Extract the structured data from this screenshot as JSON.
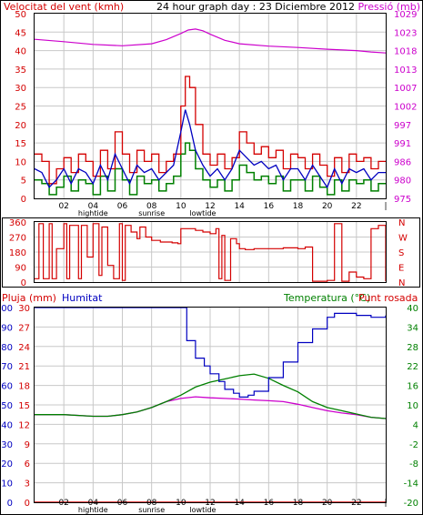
{
  "colors": {
    "wind": "#d40000",
    "wind_avg": "#0000c0",
    "wind_low": "#008000",
    "pressure": "#cc00cc",
    "humidity": "#0000c0",
    "temperature": "#008000",
    "dewpoint": "#cc00cc",
    "rain": "#d40000",
    "grid": "#c8c8c8",
    "axis": "#000000"
  },
  "chart_data": [
    {
      "type": "line",
      "title": "24 hour graph day : 23 Diciembre 2012",
      "left_label": "Velocitat del vent (kmh)",
      "right_label": "Pressió (mb)",
      "y_left_ticks": [
        "0",
        "5",
        "10",
        "15",
        "20",
        "25",
        "30",
        "35",
        "40",
        "45",
        "50"
      ],
      "y_right_ticks": [
        "975",
        "980",
        "986",
        "991",
        "997",
        "1002",
        "1007",
        "1013",
        "1018",
        "1023",
        "1029"
      ],
      "y_left_range": [
        0,
        50
      ],
      "y_right_range": [
        975,
        1029
      ],
      "x_ticks": [
        "02",
        "04",
        "06",
        "08",
        "10",
        "12",
        "14",
        "16",
        "18",
        "20",
        "22",
        "|"
      ],
      "x_range": [
        0,
        24
      ],
      "x_markers": [
        {
          "label": "hightide",
          "x": 4
        },
        {
          "label": "sunrise",
          "x": 8
        },
        {
          "label": "lowtide",
          "x": 11.5
        }
      ],
      "grid": true,
      "series": [
        {
          "key": "gust",
          "x": [
            0,
            0.5,
            1,
            1.5,
            2,
            2.5,
            3,
            3.5,
            4,
            4.5,
            5,
            5.5,
            6,
            6.5,
            7,
            7.5,
            8,
            8.5,
            9,
            9.5,
            10,
            10.3,
            10.6,
            11,
            11.5,
            12,
            12.5,
            13,
            13.5,
            14,
            14.5,
            15,
            15.5,
            16,
            16.5,
            17,
            17.5,
            18,
            18.5,
            19,
            19.5,
            20,
            20.5,
            21,
            21.5,
            22,
            22.5,
            23,
            23.5,
            24
          ],
          "y": [
            12,
            10,
            4,
            8,
            11,
            7,
            12,
            10,
            6,
            13,
            8,
            18,
            12,
            7,
            13,
            10,
            12,
            7,
            10,
            12,
            25,
            33,
            30,
            20,
            12,
            9,
            12,
            8,
            11,
            18,
            15,
            12,
            14,
            11,
            13,
            8,
            12,
            11,
            8,
            12,
            9,
            6,
            11,
            7,
            12,
            10,
            11,
            8,
            10,
            10
          ]
        },
        {
          "key": "avg",
          "x": [
            0,
            0.5,
            1,
            1.5,
            2,
            2.5,
            3,
            3.5,
            4,
            4.5,
            5,
            5.5,
            6,
            6.5,
            7,
            7.5,
            8,
            8.5,
            9,
            9.5,
            10,
            10.3,
            10.6,
            11,
            11.5,
            12,
            12.5,
            13,
            13.5,
            14,
            14.5,
            15,
            15.5,
            16,
            16.5,
            17,
            17.5,
            18,
            18.5,
            19,
            19.5,
            20,
            20.5,
            21,
            21.5,
            22,
            22.5,
            23,
            23.5,
            24
          ],
          "y": [
            8,
            7,
            3,
            5,
            8,
            4,
            8,
            7,
            4,
            9,
            5,
            12,
            8,
            4,
            9,
            7,
            8,
            5,
            7,
            9,
            18,
            24,
            20,
            13,
            9,
            6,
            8,
            5,
            8,
            13,
            11,
            9,
            10,
            8,
            9,
            5,
            8,
            8,
            5,
            9,
            6,
            3,
            8,
            4,
            8,
            7,
            8,
            5,
            7,
            7
          ]
        },
        {
          "key": "low",
          "x": [
            0,
            0.5,
            1,
            1.5,
            2,
            2.5,
            3,
            3.5,
            4,
            4.5,
            5,
            5.5,
            6,
            6.5,
            7,
            7.5,
            8,
            8.5,
            9,
            9.5,
            10,
            10.3,
            10.6,
            11,
            11.5,
            12,
            12.5,
            13,
            13.5,
            14,
            14.5,
            15,
            15.5,
            16,
            16.5,
            17,
            17.5,
            18,
            18.5,
            19,
            19.5,
            20,
            20.5,
            21,
            21.5,
            22,
            22.5,
            23,
            23.5,
            24
          ],
          "y": [
            5,
            4,
            1,
            3,
            6,
            2,
            5,
            4,
            1,
            6,
            2,
            8,
            5,
            1,
            6,
            4,
            5,
            2,
            4,
            6,
            12,
            15,
            13,
            8,
            5,
            3,
            5,
            2,
            5,
            9,
            7,
            5,
            6,
            4,
            6,
            2,
            5,
            5,
            2,
            6,
            3,
            1,
            5,
            2,
            5,
            4,
            5,
            2,
            4,
            4
          ]
        },
        {
          "key": "pressure",
          "x": [
            0,
            2,
            4,
            6,
            8,
            9,
            10,
            10.5,
            11,
            11.5,
            12,
            13,
            14,
            16,
            18,
            20,
            22,
            23,
            24
          ],
          "y": [
            1021.5,
            1020.8,
            1020,
            1019.6,
            1020.2,
            1021.4,
            1023.2,
            1024.2,
            1024.5,
            1024,
            1023,
            1021.2,
            1020.2,
            1019.5,
            1019.1,
            1018.6,
            1018.2,
            1017.8,
            1017.5
          ]
        }
      ]
    },
    {
      "type": "line",
      "title": "",
      "y_left_ticks": [
        "360",
        "270",
        "180",
        "90",
        "0"
      ],
      "y_left_range": [
        0,
        360
      ],
      "y_right_ticks": [
        "N",
        "W",
        "S",
        "E",
        "N"
      ],
      "x_range": [
        0,
        24
      ],
      "grid": true,
      "series": [
        {
          "key": "direction",
          "x": [
            0,
            0.3,
            0.6,
            1,
            1.2,
            1.5,
            2,
            2.2,
            2.4,
            3,
            3.2,
            3.6,
            4,
            4.4,
            4.6,
            5,
            5.4,
            5.8,
            6,
            6.2,
            6.6,
            7,
            7.2,
            7.6,
            8,
            8.6,
            9,
            9.4,
            9.8,
            10,
            10.4,
            11,
            11.5,
            12,
            12.4,
            12.6,
            12.8,
            13,
            13.4,
            13.8,
            14,
            14.4,
            15,
            16,
            17,
            18,
            18.5,
            19,
            19.5,
            20,
            20.5,
            21,
            21.5,
            22,
            22.5,
            23,
            23.5,
            24
          ],
          "y": [
            20,
            350,
            20,
            350,
            20,
            200,
            350,
            20,
            340,
            20,
            340,
            150,
            350,
            40,
            330,
            100,
            20,
            350,
            10,
            340,
            300,
            260,
            330,
            270,
            250,
            240,
            240,
            235,
            230,
            320,
            320,
            310,
            300,
            290,
            320,
            20,
            280,
            10,
            260,
            230,
            200,
            195,
            200,
            200,
            205,
            200,
            210,
            5,
            5,
            10,
            350,
            5,
            60,
            30,
            20,
            320,
            340,
            5
          ]
        }
      ]
    },
    {
      "type": "line",
      "title": "",
      "left_label_1": "Pluja (mm)",
      "left_label_2": "Humitat",
      "right_label_1": "Temperatura (°C)",
      "right_label_2": "Punt rosada",
      "y_left_ticks_a": [
        "30",
        "27",
        "24",
        "21",
        "18",
        "15",
        "12",
        "9",
        "6",
        "3",
        "0"
      ],
      "y_left_ticks_b": [
        "100",
        "90",
        "80",
        "70",
        "60",
        "50",
        "40",
        "30",
        "20",
        "10",
        "0"
      ],
      "y_right_ticks": [
        "40",
        "34",
        "28",
        "22",
        "16",
        "10",
        "4",
        "-2",
        "-8",
        "-14",
        "-20"
      ],
      "y_left_range": [
        0,
        100
      ],
      "y_right_range": [
        -20,
        40
      ],
      "x_ticks": [
        "02",
        "04",
        "06",
        "08",
        "10",
        "12",
        "14",
        "16",
        "18",
        "20",
        "22",
        "|"
      ],
      "x_range": [
        0,
        24
      ],
      "x_markers": [
        {
          "label": "hightide",
          "x": 4
        },
        {
          "label": "sunrise",
          "x": 8
        },
        {
          "label": "lowtide",
          "x": 11.5
        }
      ],
      "grid": true,
      "series": [
        {
          "key": "humidity",
          "x": [
            0,
            2,
            4,
            6,
            8,
            9,
            9.6,
            10,
            10.4,
            11,
            11.6,
            12,
            12.6,
            13,
            13.6,
            14,
            14.6,
            15,
            16,
            17,
            18,
            19,
            20,
            20.5,
            21,
            22,
            23,
            24
          ],
          "y": [
            100,
            100,
            100,
            100,
            100,
            100,
            100,
            100,
            83,
            74,
            70,
            66,
            62,
            58,
            56,
            54,
            55,
            57,
            64,
            72,
            82,
            89,
            95,
            97,
            97,
            96,
            95,
            96
          ]
        },
        {
          "key": "temperature",
          "x": [
            0,
            2,
            4,
            5,
            6,
            7,
            8,
            9,
            10,
            11,
            12,
            13,
            14,
            15,
            16,
            17,
            18,
            19,
            20,
            21,
            22,
            23,
            24
          ],
          "y": [
            7,
            7,
            6.5,
            6.5,
            7,
            7.8,
            9.2,
            11,
            13,
            15.5,
            17,
            18,
            19,
            19.5,
            18.2,
            16,
            14,
            11,
            9.2,
            8.2,
            7.2,
            6.2,
            5.8
          ]
        },
        {
          "key": "dewpoint",
          "x": [
            0,
            2,
            4,
            5,
            6,
            7,
            8,
            9,
            10,
            11,
            12,
            13,
            14,
            15,
            16,
            17,
            18,
            19,
            20,
            21,
            22,
            23,
            24
          ],
          "y": [
            7,
            7,
            6.5,
            6.5,
            7,
            7.8,
            9.2,
            11,
            12,
            12.5,
            12.2,
            12,
            11.8,
            11.5,
            11.3,
            11,
            10.2,
            9.2,
            8.2,
            7.5,
            7,
            6.2,
            5.8
          ]
        },
        {
          "key": "rain",
          "x": [
            0,
            24
          ],
          "y": [
            0,
            0
          ]
        }
      ]
    }
  ]
}
